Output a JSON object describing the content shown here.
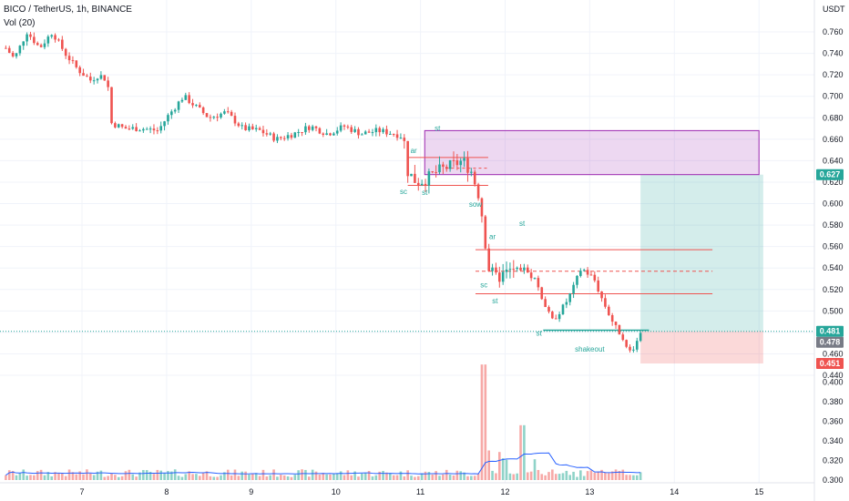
{
  "header": {
    "symbol_line": "BICO / TetherUS, 1h, BINANCE",
    "volume_label": "Vol (20)"
  },
  "axis": {
    "unit": "USDT"
  },
  "colors": {
    "up": "#26a69a",
    "down": "#ef5350",
    "vol_up": "#8fd3c8",
    "vol_down": "#f7a9a7",
    "vol_ma": "#2962ff",
    "current_price": "#26a69a",
    "stop": "#ef5350",
    "range_box": "#9c27b0"
  },
  "chart_data": {
    "type": "candlestick",
    "title": "BICO / TetherUS, 1h, BINANCE",
    "price_ylim": [
      0.44,
      0.77
    ],
    "price_ticks": [
      "0.760",
      "0.740",
      "0.720",
      "0.700",
      "0.680",
      "0.660",
      "0.640",
      "0.620",
      "0.600",
      "0.580",
      "0.560",
      "0.540",
      "0.520",
      "0.500",
      "0.480",
      "0.460",
      "0.440"
    ],
    "volume_ticks": [
      "0.420",
      "0.400",
      "0.380",
      "0.360",
      "0.340",
      "0.320",
      "0.300"
    ],
    "x_ticks": [
      "7",
      "8",
      "9",
      "10",
      "11",
      "12",
      "13",
      "14",
      "15"
    ],
    "price_path": [
      [
        6.1,
        0.745
      ],
      [
        6.2,
        0.735
      ],
      [
        6.35,
        0.76
      ],
      [
        6.5,
        0.745
      ],
      [
        6.65,
        0.76
      ],
      [
        6.8,
        0.74
      ],
      [
        6.95,
        0.725
      ],
      [
        7.1,
        0.715
      ],
      [
        7.2,
        0.72
      ],
      [
        7.3,
        0.715
      ],
      [
        7.35,
        0.675
      ],
      [
        7.5,
        0.67
      ],
      [
        7.7,
        0.67
      ],
      [
        7.9,
        0.668
      ],
      [
        8.0,
        0.68
      ],
      [
        8.2,
        0.7
      ],
      [
        8.35,
        0.69
      ],
      [
        8.5,
        0.68
      ],
      [
        8.7,
        0.685
      ],
      [
        8.9,
        0.67
      ],
      [
        9.1,
        0.668
      ],
      [
        9.3,
        0.66
      ],
      [
        9.5,
        0.665
      ],
      [
        9.7,
        0.672
      ],
      [
        9.9,
        0.665
      ],
      [
        10.1,
        0.672
      ],
      [
        10.3,
        0.665
      ],
      [
        10.5,
        0.668
      ],
      [
        10.7,
        0.665
      ],
      [
        10.8,
        0.662
      ],
      [
        10.85,
        0.63
      ],
      [
        10.95,
        0.62
      ],
      [
        11.05,
        0.622
      ],
      [
        11.2,
        0.63
      ],
      [
        11.35,
        0.635
      ],
      [
        11.5,
        0.64
      ],
      [
        11.6,
        0.63
      ],
      [
        11.7,
        0.605
      ],
      [
        11.75,
        0.575
      ],
      [
        11.8,
        0.54
      ],
      [
        11.9,
        0.53
      ],
      [
        12.0,
        0.535
      ],
      [
        12.2,
        0.54
      ],
      [
        12.35,
        0.53
      ],
      [
        12.45,
        0.51
      ],
      [
        12.55,
        0.49
      ],
      [
        12.7,
        0.505
      ],
      [
        12.8,
        0.52
      ],
      [
        12.9,
        0.54
      ],
      [
        13.05,
        0.53
      ],
      [
        13.15,
        0.51
      ],
      [
        13.3,
        0.485
      ],
      [
        13.4,
        0.475
      ],
      [
        13.45,
        0.46
      ],
      [
        13.55,
        0.47
      ],
      [
        13.6,
        0.481
      ]
    ],
    "current_price": "0.481",
    "secondary_price_label": "0.478",
    "target_label": "0.627",
    "stop_label": "0.451",
    "annotations": [
      "st",
      "ar",
      "sc",
      "st",
      "sow",
      "ar",
      "st",
      "sc",
      "st",
      "st",
      "shakeout"
    ]
  }
}
